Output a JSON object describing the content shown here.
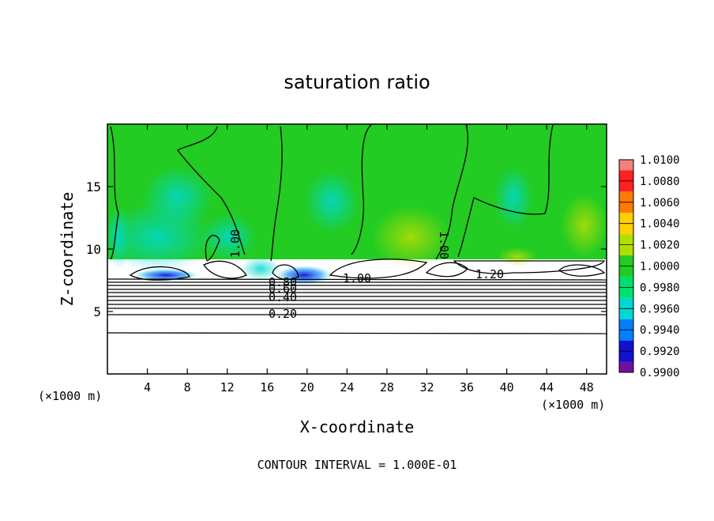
{
  "chart_data": {
    "type": "heatmap",
    "title": "saturation ratio",
    "xlabel": "X-coordinate",
    "ylabel": "Z-coordinate",
    "x_unit": "(×1000 m)",
    "xlim": [
      0,
      50
    ],
    "ylim": [
      0,
      20
    ],
    "xticks": [
      4,
      8,
      12,
      16,
      20,
      24,
      28,
      32,
      36,
      40,
      44,
      48
    ],
    "yticks": [
      5,
      10,
      15
    ],
    "grid": false,
    "contour_interval_text": "CONTOUR INTERVAL = 1.000E-01",
    "contour_labels": [
      "1.00",
      "1.00",
      "1.00",
      "1.20",
      "0.80",
      "0.60",
      "0.40",
      "0.20"
    ],
    "colorbar": {
      "levels": [
        "1.0100",
        "1.0080",
        "1.0060",
        "1.0040",
        "1.0020",
        "1.0000",
        "0.9980",
        "0.9960",
        "0.9940",
        "0.9920",
        "0.9900"
      ],
      "colors": [
        "#f08080",
        "#ff2020",
        "#ff7a00",
        "#ffd000",
        "#b0e000",
        "#22cc22",
        "#00e070",
        "#00d8d0",
        "#0080ff",
        "#1010d0",
        "#7010a0"
      ]
    }
  }
}
